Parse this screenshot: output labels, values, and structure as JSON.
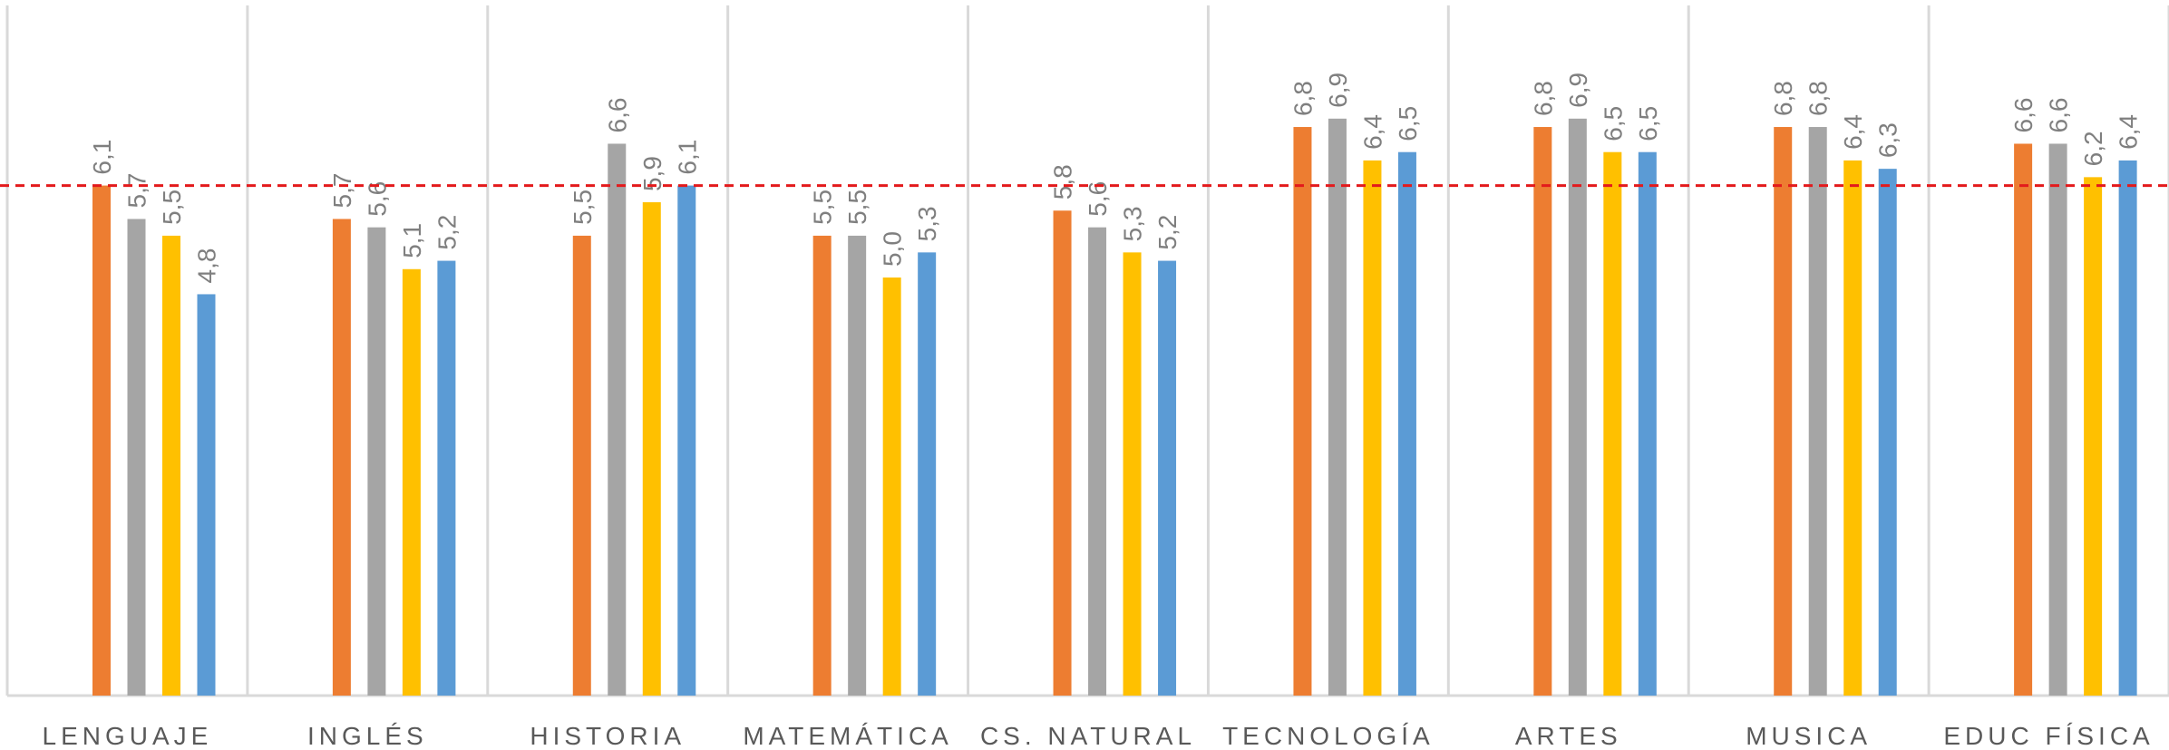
{
  "chart_data": {
    "type": "bar",
    "categories": [
      "LENGUAJE",
      "INGLÉS",
      "HISTORIA",
      "MATEMÁTICA",
      "CS. NATURAL",
      "TECNOLOGÍA",
      "ARTES",
      "MUSICA",
      "EDUC FÍSICA"
    ],
    "series": [
      {
        "color": "#ed7d31",
        "values": [
          6.1,
          5.7,
          5.5,
          5.5,
          5.8,
          6.8,
          6.8,
          6.8,
          6.6
        ]
      },
      {
        "color": "#a5a5a5",
        "values": [
          5.7,
          5.6,
          6.6,
          5.5,
          5.6,
          6.9,
          6.9,
          6.8,
          6.6
        ]
      },
      {
        "color": "#ffc000",
        "values": [
          5.5,
          5.1,
          5.9,
          5.0,
          5.3,
          6.4,
          6.5,
          6.4,
          6.2
        ]
      },
      {
        "color": "#5b9bd5",
        "values": [
          4.8,
          5.2,
          6.1,
          5.3,
          5.2,
          6.5,
          6.5,
          6.3,
          6.4
        ]
      }
    ],
    "data_labels": [
      [
        "6,1",
        "5,7",
        "5,5",
        "4,8"
      ],
      [
        "5,7",
        "5,6",
        "5,1",
        "5,2"
      ],
      [
        "5,5",
        "6,6",
        "5,9",
        "6,1"
      ],
      [
        "5,5",
        "5,5",
        "5,0",
        "5,3"
      ],
      [
        "5,8",
        "5,6",
        "5,3",
        "5,2"
      ],
      [
        "6,8",
        "6,9",
        "6,4",
        "6,5"
      ],
      [
        "6,8",
        "6,9",
        "6,5",
        "6,5"
      ],
      [
        "6,8",
        "6,8",
        "6,4",
        "6,3"
      ],
      [
        "6,6",
        "6,6",
        "6,2",
        "6,4"
      ]
    ],
    "reference_line": {
      "value": 6.1,
      "color": "#e31a1c",
      "style": "dashed"
    },
    "ylim": [
      0,
      7.6
    ],
    "grid": "vertical category separators",
    "legend": "none",
    "title": "",
    "xlabel": "",
    "ylabel": ""
  }
}
